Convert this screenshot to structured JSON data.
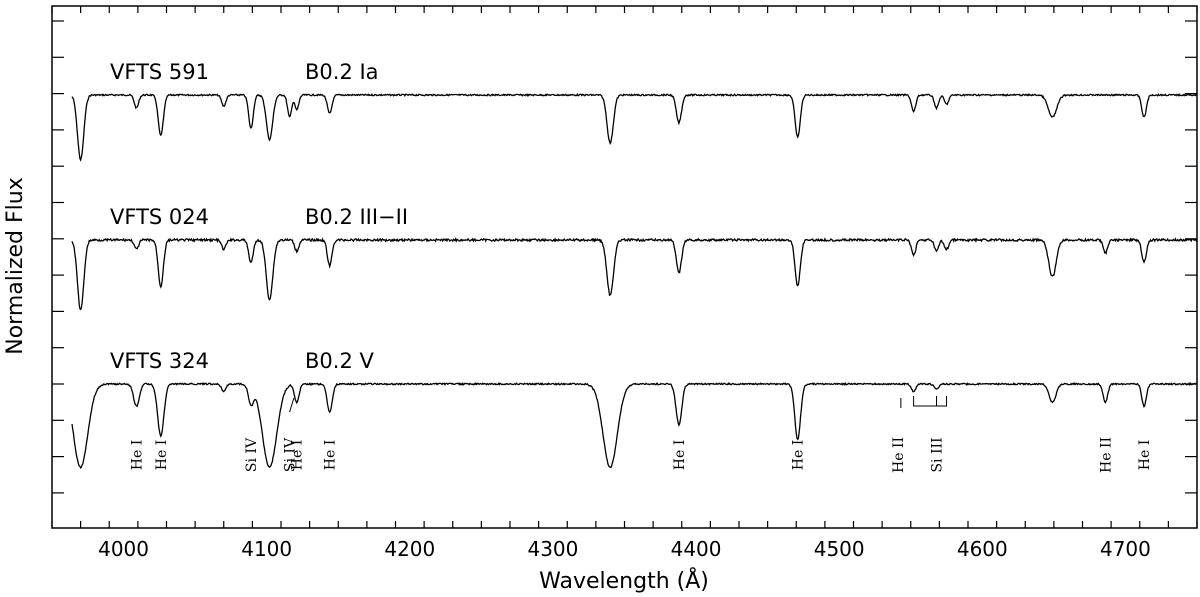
{
  "chart_data": {
    "type": "line",
    "xlabel": "Wavelength (Å)",
    "ylabel": "Normalized Flux",
    "xlim": [
      3950,
      4750
    ],
    "xticks": [
      4000,
      4100,
      4200,
      4300,
      4400,
      4500,
      4600,
      4700
    ],
    "grid": false,
    "series": [
      {
        "name": "VFTS 591",
        "spectral_type": "B0.2 Ia",
        "continuum_level": 2,
        "lines": [
          {
            "wl": 3970,
            "depth": 0.35,
            "width": 2.2
          },
          {
            "wl": 4009,
            "depth": 0.07,
            "width": 1.5
          },
          {
            "wl": 4026,
            "depth": 0.22,
            "width": 1.8
          },
          {
            "wl": 4070,
            "depth": 0.06,
            "width": 1.5
          },
          {
            "wl": 4089,
            "depth": 0.18,
            "width": 1.6
          },
          {
            "wl": 4102,
            "depth": 0.24,
            "width": 2.2
          },
          {
            "wl": 4116,
            "depth": 0.12,
            "width": 1.4
          },
          {
            "wl": 4121,
            "depth": 0.08,
            "width": 1.4
          },
          {
            "wl": 4144,
            "depth": 0.1,
            "width": 1.6
          },
          {
            "wl": 4340,
            "depth": 0.26,
            "width": 2.2
          },
          {
            "wl": 4388,
            "depth": 0.15,
            "width": 1.8
          },
          {
            "wl": 4471,
            "depth": 0.23,
            "width": 1.8
          },
          {
            "wl": 4552,
            "depth": 0.09,
            "width": 1.5
          },
          {
            "wl": 4568,
            "depth": 0.07,
            "width": 1.5
          },
          {
            "wl": 4575,
            "depth": 0.05,
            "width": 1.5
          },
          {
            "wl": 4649,
            "depth": 0.12,
            "width": 3.0
          },
          {
            "wl": 4713,
            "depth": 0.12,
            "width": 1.6
          }
        ]
      },
      {
        "name": "VFTS 024",
        "spectral_type": "B0.2 III−II",
        "continuum_level": 1,
        "lines": [
          {
            "wl": 3970,
            "depth": 0.38,
            "width": 2.2
          },
          {
            "wl": 4009,
            "depth": 0.05,
            "width": 1.5
          },
          {
            "wl": 4026,
            "depth": 0.25,
            "width": 1.8
          },
          {
            "wl": 4070,
            "depth": 0.05,
            "width": 1.5
          },
          {
            "wl": 4089,
            "depth": 0.12,
            "width": 1.6
          },
          {
            "wl": 4102,
            "depth": 0.32,
            "width": 2.3
          },
          {
            "wl": 4121,
            "depth": 0.06,
            "width": 1.4
          },
          {
            "wl": 4144,
            "depth": 0.14,
            "width": 1.6
          },
          {
            "wl": 4340,
            "depth": 0.3,
            "width": 2.3
          },
          {
            "wl": 4388,
            "depth": 0.18,
            "width": 1.8
          },
          {
            "wl": 4471,
            "depth": 0.25,
            "width": 1.8
          },
          {
            "wl": 4552,
            "depth": 0.08,
            "width": 1.5
          },
          {
            "wl": 4568,
            "depth": 0.06,
            "width": 1.5
          },
          {
            "wl": 4575,
            "depth": 0.05,
            "width": 1.5
          },
          {
            "wl": 4649,
            "depth": 0.2,
            "width": 2.6
          },
          {
            "wl": 4686,
            "depth": 0.07,
            "width": 1.5
          },
          {
            "wl": 4713,
            "depth": 0.12,
            "width": 1.6
          }
        ]
      },
      {
        "name": "VFTS 324",
        "spectral_type": "B0.2 V",
        "continuum_level": 0,
        "lines": [
          {
            "wl": 3970,
            "depth": 0.45,
            "width": 5.0
          },
          {
            "wl": 4009,
            "depth": 0.12,
            "width": 2.0
          },
          {
            "wl": 4026,
            "depth": 0.28,
            "width": 2.2
          },
          {
            "wl": 4070,
            "depth": 0.04,
            "width": 1.5
          },
          {
            "wl": 4089,
            "depth": 0.1,
            "width": 1.8
          },
          {
            "wl": 4102,
            "depth": 0.45,
            "width": 5.0
          },
          {
            "wl": 4121,
            "depth": 0.1,
            "width": 1.6
          },
          {
            "wl": 4144,
            "depth": 0.15,
            "width": 1.8
          },
          {
            "wl": 4340,
            "depth": 0.45,
            "width": 5.0
          },
          {
            "wl": 4388,
            "depth": 0.22,
            "width": 2.0
          },
          {
            "wl": 4471,
            "depth": 0.3,
            "width": 2.0
          },
          {
            "wl": 4552,
            "depth": 0.04,
            "width": 1.5
          },
          {
            "wl": 4568,
            "depth": 0.03,
            "width": 1.5
          },
          {
            "wl": 4649,
            "depth": 0.1,
            "width": 2.4
          },
          {
            "wl": 4686,
            "depth": 0.1,
            "width": 1.6
          },
          {
            "wl": 4713,
            "depth": 0.12,
            "width": 1.6
          }
        ]
      }
    ],
    "annotations": [
      {
        "text": "He I",
        "wl": 4009
      },
      {
        "text": "He I",
        "wl": 4026
      },
      {
        "text": "Si IV",
        "wl": 4089
      },
      {
        "text": "Si IV",
        "wl": 4116
      },
      {
        "text": "He I",
        "wl": 4121
      },
      {
        "text": "He I",
        "wl": 4144
      },
      {
        "text": "He I",
        "wl": 4388
      },
      {
        "text": "He I",
        "wl": 4471
      },
      {
        "text": "He II",
        "wl": 4541
      },
      {
        "text": "Si III",
        "wl": 4568
      },
      {
        "text": "He II",
        "wl": 4686
      },
      {
        "text": "He I",
        "wl": 4713
      }
    ],
    "si_iii_bracket": {
      "from": 4552,
      "to": 4575
    }
  }
}
